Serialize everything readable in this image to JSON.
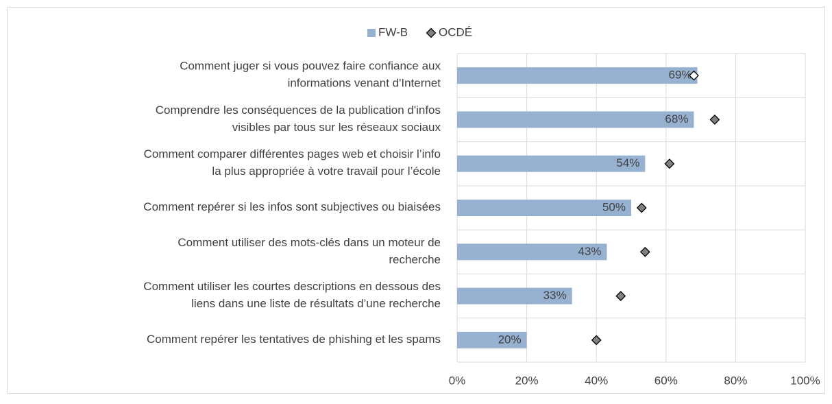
{
  "chart_data": {
    "type": "bar",
    "categories": [
      "Comment juger si vous pouvez faire confiance aux\ninformations venant d'Internet",
      "Comprendre les conséquences de la publication d'infos\nvisibles par tous sur les réseaux sociaux",
      "Comment comparer différentes pages web et choisir l’info\nla plus appropriée à votre travail pour l’école",
      "Comment repérer si les infos sont subjectives ou biaisées",
      "Comment utiliser des mots-clés dans un moteur de\nrecherche",
      "Comment utiliser les courtes descriptions en dessous des\nliens dans une liste de résultats d’une recherche",
      "Comment repérer les tentatives de phishing et les spams"
    ],
    "series": [
      {
        "name": "FW-B",
        "color": "#97b2d0",
        "values": [
          69,
          68,
          54,
          50,
          43,
          33,
          20
        ],
        "value_labels": [
          "69%",
          "68%",
          "54%",
          "50%",
          "43%",
          "33%",
          "20%"
        ]
      },
      {
        "name": "OCDÉ",
        "color": "#595959",
        "marker": "diamond",
        "fills": [
          "#ffffff",
          "#808080",
          "#808080",
          "#808080",
          "#808080",
          "#808080",
          "#808080"
        ],
        "values": [
          68,
          74,
          61,
          53,
          54,
          47,
          40
        ]
      }
    ],
    "xlim": [
      0,
      100
    ],
    "xticks": [
      {
        "value": 0,
        "label": "0%"
      },
      {
        "value": 20,
        "label": "20%"
      },
      {
        "value": 40,
        "label": "40%"
      },
      {
        "value": 60,
        "label": "60%"
      },
      {
        "value": 80,
        "label": "80%"
      },
      {
        "value": 100,
        "label": "100%"
      }
    ],
    "grid": true,
    "legend": "top"
  }
}
